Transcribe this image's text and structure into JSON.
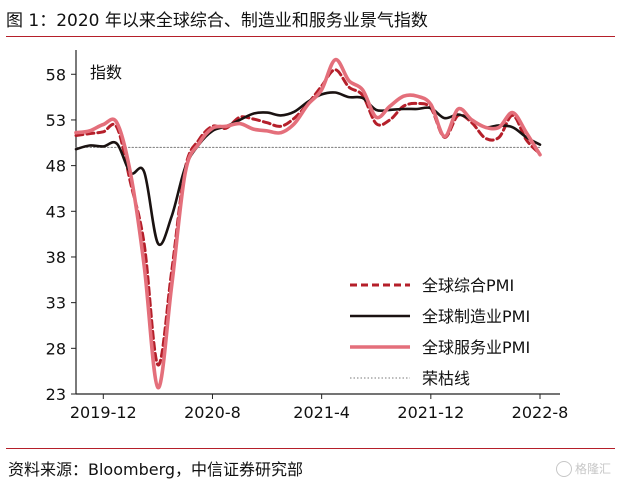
{
  "header": {
    "title": "图 1：2020 年以来全球综合、制造业和服务业景气指数"
  },
  "footer": {
    "source": "资料来源：Bloomberg，中信证券研究部",
    "watermark": "格隆汇"
  },
  "chart_data": {
    "type": "line",
    "ylabel": "指数",
    "ylim": [
      23,
      60
    ],
    "yticks": [
      58,
      53,
      48,
      43,
      38,
      33,
      28,
      23
    ],
    "xticks": [
      "2019-12",
      "2020-8",
      "2021-4",
      "2021-12",
      "2022-8"
    ],
    "x": [
      "2019-10",
      "2019-11",
      "2019-12",
      "2020-1",
      "2020-2",
      "2020-3",
      "2020-4",
      "2020-5",
      "2020-6",
      "2020-7",
      "2020-8",
      "2020-9",
      "2020-10",
      "2020-11",
      "2020-12",
      "2021-1",
      "2021-2",
      "2021-3",
      "2021-4",
      "2021-5",
      "2021-6",
      "2021-7",
      "2021-8",
      "2021-9",
      "2021-10",
      "2021-11",
      "2021-12",
      "2022-1",
      "2022-2",
      "2022-3",
      "2022-4",
      "2022-5",
      "2022-6",
      "2022-7",
      "2022-8"
    ],
    "series": [
      {
        "name": "全球综合PMI",
        "color": "#b51f2a",
        "style": "dashed",
        "values": [
          51.3,
          51.5,
          51.7,
          52.2,
          46.1,
          39.4,
          26.2,
          36.3,
          47.7,
          50.8,
          52.3,
          52.1,
          53.3,
          53.1,
          52.7,
          52.3,
          53.2,
          54.8,
          56.7,
          58.5,
          56.6,
          55.7,
          52.6,
          53.0,
          54.5,
          54.8,
          54.3,
          51.1,
          53.5,
          52.7,
          51.0,
          51.1,
          53.5,
          50.8,
          49.3
        ]
      },
      {
        "name": "全球制造业PMI",
        "color": "#1a1211",
        "style": "solid",
        "values": [
          49.8,
          50.2,
          50.1,
          50.4,
          47.2,
          47.3,
          39.5,
          42.4,
          47.8,
          50.3,
          51.8,
          52.3,
          53.0,
          53.7,
          53.8,
          53.5,
          53.9,
          55.0,
          55.8,
          56.0,
          55.5,
          55.4,
          54.1,
          54.1,
          54.2,
          54.2,
          54.3,
          53.2,
          53.6,
          53.0,
          52.2,
          52.4,
          52.2,
          51.1,
          50.3
        ]
      },
      {
        "name": "全球服务业PMI",
        "color": "#e46f7b",
        "style": "solid",
        "values": [
          51.6,
          51.8,
          52.5,
          52.7,
          47.1,
          37.0,
          23.7,
          34.7,
          47.2,
          50.4,
          52.1,
          52.3,
          52.6,
          52.0,
          51.8,
          51.6,
          52.6,
          54.7,
          56.3,
          59.6,
          57.3,
          56.3,
          53.3,
          54.5,
          55.6,
          55.6,
          54.7,
          51.2,
          54.2,
          53.0,
          52.2,
          52.2,
          53.8,
          51.6,
          49.2
        ]
      },
      {
        "name": "荣枯线",
        "color": "#7a7a7a",
        "style": "dotted",
        "values": [
          50,
          50,
          50,
          50,
          50,
          50,
          50,
          50,
          50,
          50,
          50,
          50,
          50,
          50,
          50,
          50,
          50,
          50,
          50,
          50,
          50,
          50,
          50,
          50,
          50,
          50,
          50,
          50,
          50,
          50,
          50,
          50,
          50,
          50,
          50
        ]
      }
    ],
    "legend_position": "bottom-right"
  }
}
